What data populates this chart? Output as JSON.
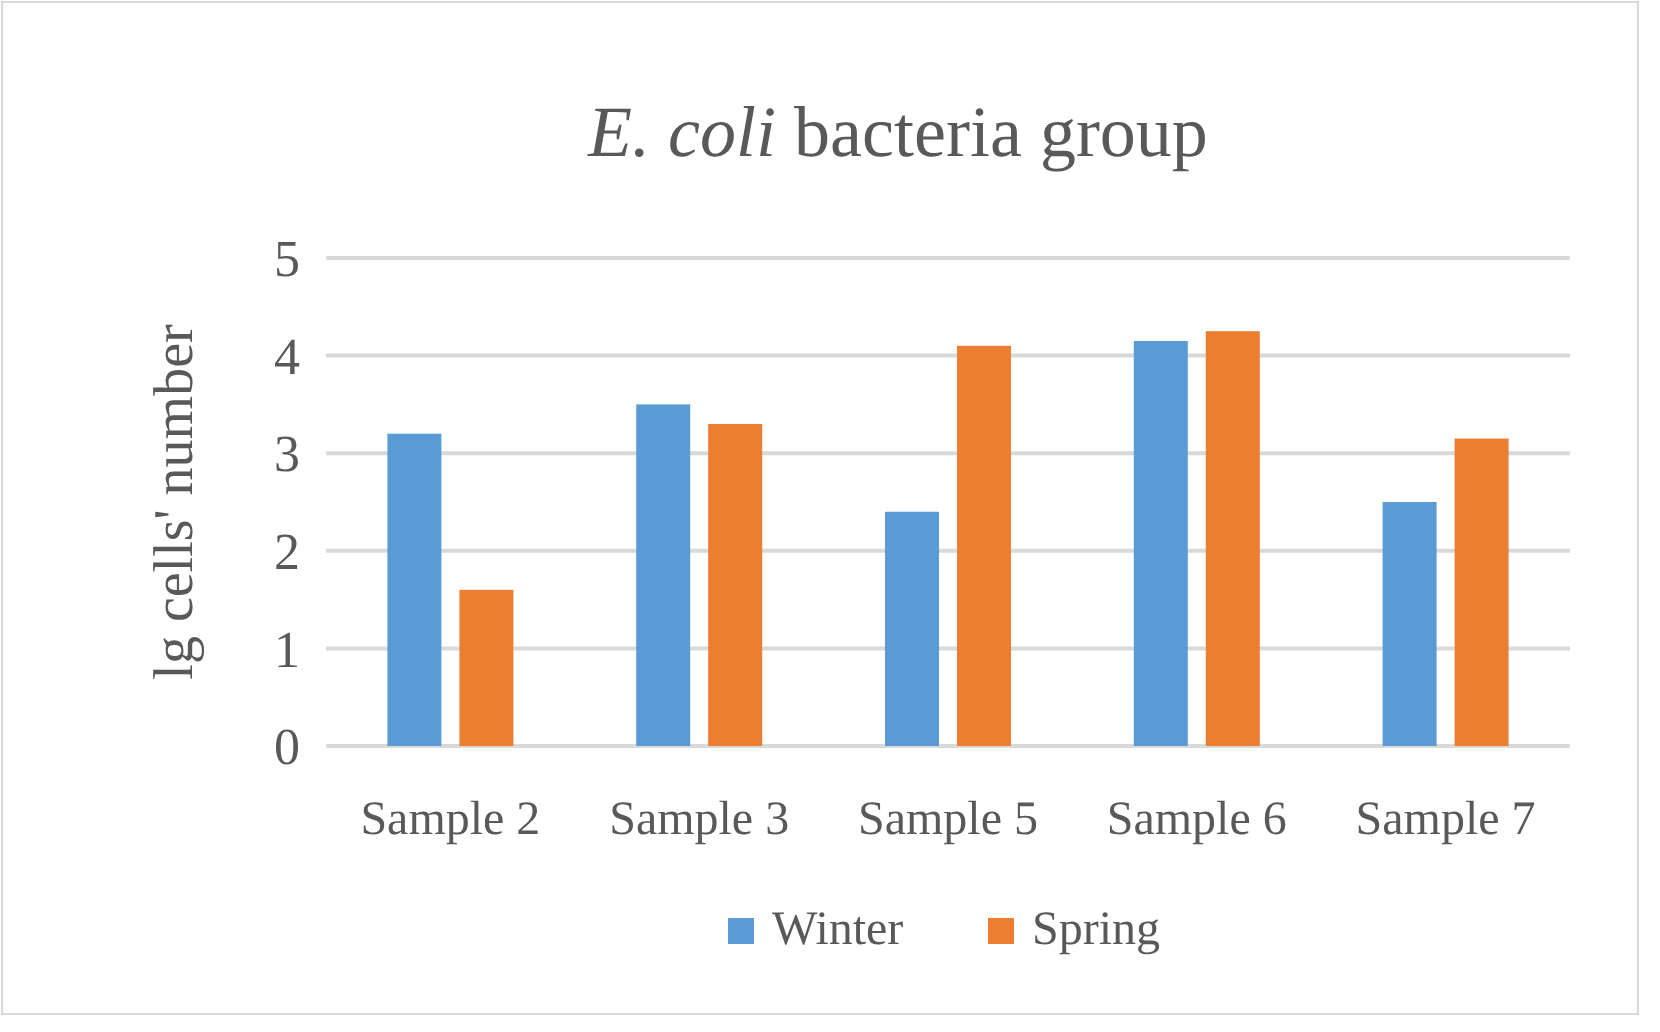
{
  "chart_data": {
    "type": "bar",
    "title": "E. coli bacteria group",
    "ylabel": "lg cells' number",
    "categories": [
      "Sample 2",
      "Sample 3",
      "Sample 5",
      "Sample 6",
      "Sample 7"
    ],
    "series": [
      {
        "name": "Winter",
        "color": "#5b9bd5",
        "values": [
          3.2,
          3.5,
          2.4,
          4.15,
          2.5
        ]
      },
      {
        "name": "Spring",
        "color": "#ed7d31",
        "values": [
          1.6,
          3.3,
          4.1,
          4.25,
          3.15
        ]
      }
    ],
    "ylim": [
      0,
      5
    ],
    "yticks": [
      0,
      1,
      2,
      3,
      4,
      5
    ],
    "grid": "y",
    "legend": "bottom"
  }
}
